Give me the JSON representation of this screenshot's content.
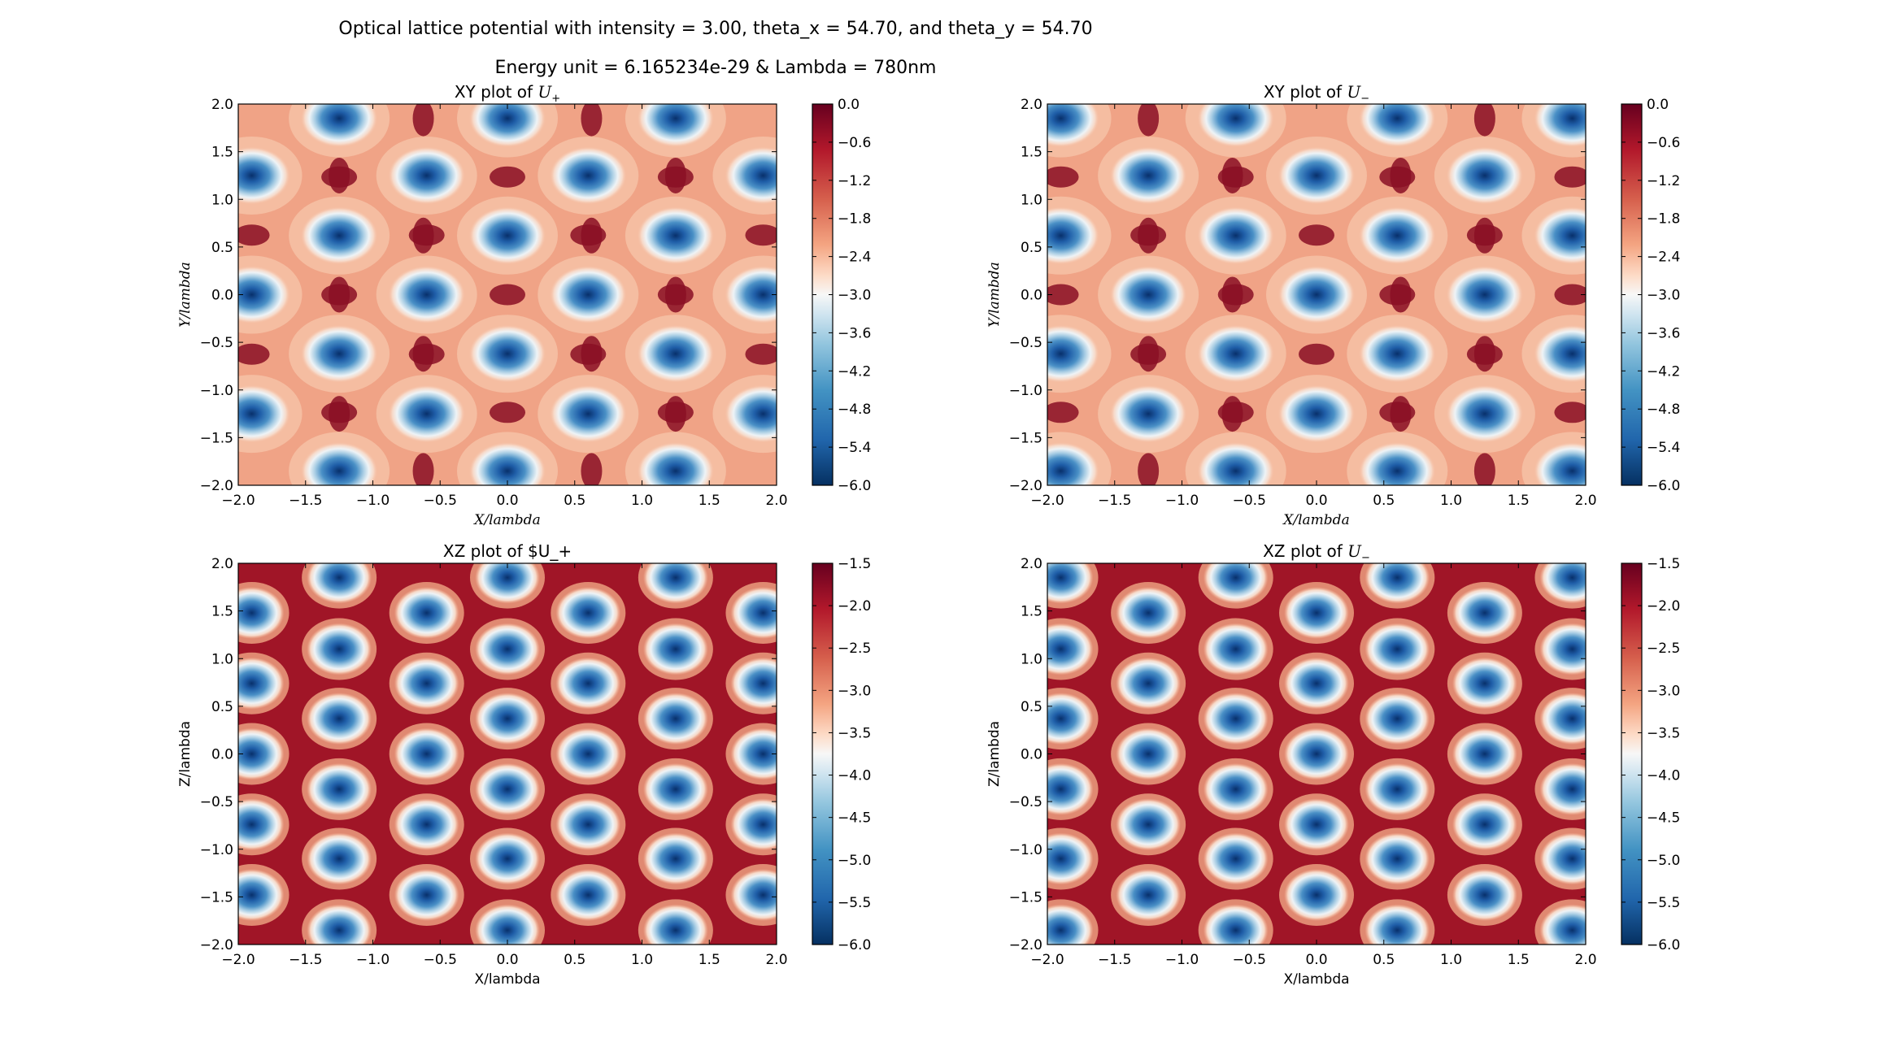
{
  "figure": {
    "suptitle_line1": "Optical lattice potential with intensity = 3.00, theta_x = 54.70, and theta_y = 54.70",
    "suptitle_line2": "Energy unit = 6.165234e-29 & Lambda = 780nm"
  },
  "colormap": {
    "name": "RdBu_r",
    "low_color": "#053061",
    "mid_color": "#f7f7f7",
    "high_color": "#67001f"
  },
  "chart_data": [
    {
      "type": "heatmap",
      "panel": "top-left",
      "title": "XY plot of U_+",
      "title_prefix": "XY plot of ",
      "title_math": "U",
      "title_sub": "+",
      "xlabel": "X/lambda",
      "ylabel": "Y/lambda",
      "xlim": [
        -2.0,
        2.0
      ],
      "ylim": [
        -2.0,
        2.0
      ],
      "xticks": [
        "−2.0",
        "−1.5",
        "−1.0",
        "−0.5",
        "0.0",
        "0.5",
        "1.0",
        "1.5",
        "2.0"
      ],
      "yticks": [
        "−2.0",
        "−1.5",
        "−1.0",
        "−0.5",
        "0.0",
        "0.5",
        "1.0",
        "1.5",
        "2.0"
      ],
      "colorbar_range": [
        -6.0,
        0.0
      ],
      "colorbar_ticks": [
        "0.0",
        "−0.6",
        "−1.2",
        "−1.8",
        "−2.4",
        "−3.0",
        "−3.6",
        "−4.2",
        "−4.8",
        "−5.4",
        "−6.0"
      ],
      "minima_centers": [
        [
          -1.9,
          1.25
        ],
        [
          -0.6,
          1.25
        ],
        [
          0.6,
          1.25
        ],
        [
          1.9,
          1.25
        ],
        [
          -1.9,
          0.0
        ],
        [
          -0.6,
          0.0
        ],
        [
          0.6,
          0.0
        ],
        [
          1.9,
          0.0
        ],
        [
          -1.9,
          -1.25
        ],
        [
          -0.6,
          -1.25
        ],
        [
          0.6,
          -1.25
        ],
        [
          1.9,
          -1.25
        ],
        [
          -1.25,
          1.85
        ],
        [
          0.0,
          1.85
        ],
        [
          1.25,
          1.85
        ],
        [
          -1.25,
          0.62
        ],
        [
          0.0,
          0.62
        ],
        [
          1.25,
          0.62
        ],
        [
          -1.25,
          -0.62
        ],
        [
          0.0,
          -0.62
        ],
        [
          1.25,
          -0.62
        ],
        [
          -1.25,
          -1.85
        ],
        [
          0.0,
          -1.85
        ],
        [
          1.25,
          -1.85
        ]
      ]
    },
    {
      "type": "heatmap",
      "panel": "top-right",
      "title": "XY plot of U_-",
      "title_prefix": "XY plot of ",
      "title_math": "U",
      "title_sub": "−",
      "xlabel": "X/lambda",
      "ylabel": "Y/lambda",
      "xlim": [
        -2.0,
        2.0
      ],
      "ylim": [
        -2.0,
        2.0
      ],
      "xticks": [
        "−2.0",
        "−1.5",
        "−1.0",
        "−0.5",
        "0.0",
        "0.5",
        "1.0",
        "1.5",
        "2.0"
      ],
      "yticks": [
        "−2.0",
        "−1.5",
        "−1.0",
        "−0.5",
        "0.0",
        "0.5",
        "1.0",
        "1.5",
        "2.0"
      ],
      "colorbar_range": [
        -6.0,
        0.0
      ],
      "colorbar_ticks": [
        "0.0",
        "−0.6",
        "−1.2",
        "−1.8",
        "−2.4",
        "−3.0",
        "−3.6",
        "−4.2",
        "−4.8",
        "−5.4",
        "−6.0"
      ],
      "minima_centers": [
        [
          -1.9,
          1.85
        ],
        [
          -0.6,
          1.85
        ],
        [
          0.6,
          1.85
        ],
        [
          1.9,
          1.85
        ],
        [
          -1.9,
          0.62
        ],
        [
          -0.6,
          0.62
        ],
        [
          0.6,
          0.62
        ],
        [
          1.9,
          0.62
        ],
        [
          -1.9,
          -0.62
        ],
        [
          -0.6,
          -0.62
        ],
        [
          0.6,
          -0.62
        ],
        [
          1.9,
          -0.62
        ],
        [
          -1.9,
          -1.85
        ],
        [
          -0.6,
          -1.85
        ],
        [
          0.6,
          -1.85
        ],
        [
          1.9,
          -1.85
        ],
        [
          -1.25,
          1.25
        ],
        [
          0.0,
          1.25
        ],
        [
          1.25,
          1.25
        ],
        [
          -1.25,
          0.0
        ],
        [
          0.0,
          0.0
        ],
        [
          1.25,
          0.0
        ],
        [
          -1.25,
          -1.25
        ],
        [
          0.0,
          -1.25
        ],
        [
          1.25,
          -1.25
        ]
      ]
    },
    {
      "type": "heatmap",
      "panel": "bottom-left",
      "title": "XZ plot of $U_+",
      "title_prefix": "XZ plot of $U_+",
      "title_math": "",
      "title_sub": "",
      "xlabel": "X/lambda",
      "ylabel": "Z/lambda",
      "xlim": [
        -2.0,
        2.0
      ],
      "ylim": [
        -2.0,
        2.0
      ],
      "xticks": [
        "−2.0",
        "−1.5",
        "−1.0",
        "−0.5",
        "0.0",
        "0.5",
        "1.0",
        "1.5",
        "2.0"
      ],
      "yticks": [
        "−2.0",
        "−1.5",
        "−1.0",
        "−0.5",
        "0.0",
        "0.5",
        "1.0",
        "1.5",
        "2.0"
      ],
      "colorbar_range": [
        -6.0,
        -1.5
      ],
      "colorbar_ticks": [
        "−1.5",
        "−2.0",
        "−2.5",
        "−3.0",
        "−3.5",
        "−4.0",
        "−4.5",
        "−5.0",
        "−5.5",
        "−6.0"
      ],
      "minima_centers": [
        [
          -1.25,
          1.85
        ],
        [
          0.0,
          1.85
        ],
        [
          1.25,
          1.85
        ],
        [
          -1.9,
          1.48
        ],
        [
          -0.6,
          1.48
        ],
        [
          0.6,
          1.48
        ],
        [
          1.9,
          1.48
        ],
        [
          -1.25,
          1.1
        ],
        [
          0.0,
          1.1
        ],
        [
          1.25,
          1.1
        ],
        [
          -1.9,
          0.74
        ],
        [
          -0.6,
          0.74
        ],
        [
          0.6,
          0.74
        ],
        [
          1.9,
          0.74
        ],
        [
          -1.25,
          0.37
        ],
        [
          0.0,
          0.37
        ],
        [
          1.25,
          0.37
        ],
        [
          -1.9,
          0.0
        ],
        [
          -0.6,
          0.0
        ],
        [
          0.6,
          0.0
        ],
        [
          1.9,
          0.0
        ],
        [
          -1.25,
          -0.37
        ],
        [
          0.0,
          -0.37
        ],
        [
          1.25,
          -0.37
        ],
        [
          -1.9,
          -0.74
        ],
        [
          -0.6,
          -0.74
        ],
        [
          0.6,
          -0.74
        ],
        [
          1.9,
          -0.74
        ],
        [
          -1.25,
          -1.1
        ],
        [
          0.0,
          -1.1
        ],
        [
          1.25,
          -1.1
        ],
        [
          -1.9,
          -1.48
        ],
        [
          -0.6,
          -1.48
        ],
        [
          0.6,
          -1.48
        ],
        [
          1.9,
          -1.48
        ],
        [
          -1.25,
          -1.85
        ],
        [
          0.0,
          -1.85
        ],
        [
          1.25,
          -1.85
        ]
      ]
    },
    {
      "type": "heatmap",
      "panel": "bottom-right",
      "title": "XZ plot of U_-",
      "title_prefix": "XZ plot of ",
      "title_math": "U",
      "title_sub": "−",
      "xlabel": "X/lambda",
      "ylabel": "Z/lambda",
      "xlim": [
        -2.0,
        2.0
      ],
      "ylim": [
        -2.0,
        2.0
      ],
      "xticks": [
        "−2.0",
        "−1.5",
        "−1.0",
        "−0.5",
        "0.0",
        "0.5",
        "1.0",
        "1.5",
        "2.0"
      ],
      "yticks": [
        "−2.0",
        "−1.5",
        "−1.0",
        "−0.5",
        "0.0",
        "0.5",
        "1.0",
        "1.5",
        "2.0"
      ],
      "colorbar_range": [
        -6.0,
        -1.5
      ],
      "colorbar_ticks": [
        "−1.5",
        "−2.0",
        "−2.5",
        "−3.0",
        "−3.5",
        "−4.0",
        "−4.5",
        "−5.0",
        "−5.5",
        "−6.0"
      ],
      "minima_centers": [
        [
          -1.9,
          1.85
        ],
        [
          -0.6,
          1.85
        ],
        [
          0.6,
          1.85
        ],
        [
          1.9,
          1.85
        ],
        [
          -1.25,
          1.48
        ],
        [
          0.0,
          1.48
        ],
        [
          1.25,
          1.48
        ],
        [
          -1.9,
          1.1
        ],
        [
          -0.6,
          1.1
        ],
        [
          0.6,
          1.1
        ],
        [
          1.9,
          1.1
        ],
        [
          -1.25,
          0.74
        ],
        [
          0.0,
          0.74
        ],
        [
          1.25,
          0.74
        ],
        [
          -1.9,
          0.37
        ],
        [
          -0.6,
          0.37
        ],
        [
          0.6,
          0.37
        ],
        [
          1.9,
          0.37
        ],
        [
          -1.25,
          0.0
        ],
        [
          0.0,
          0.0
        ],
        [
          1.25,
          0.0
        ],
        [
          -1.9,
          -0.37
        ],
        [
          -0.6,
          -0.37
        ],
        [
          0.6,
          -0.37
        ],
        [
          1.9,
          -0.37
        ],
        [
          -1.25,
          -0.74
        ],
        [
          0.0,
          -0.74
        ],
        [
          1.25,
          -0.74
        ],
        [
          -1.9,
          -1.1
        ],
        [
          -0.6,
          -1.1
        ],
        [
          0.6,
          -1.1
        ],
        [
          1.9,
          -1.1
        ],
        [
          -1.25,
          -1.48
        ],
        [
          0.0,
          -1.48
        ],
        [
          1.25,
          -1.48
        ],
        [
          -1.9,
          -1.85
        ],
        [
          -0.6,
          -1.85
        ],
        [
          0.6,
          -1.85
        ],
        [
          1.9,
          -1.85
        ]
      ]
    }
  ]
}
